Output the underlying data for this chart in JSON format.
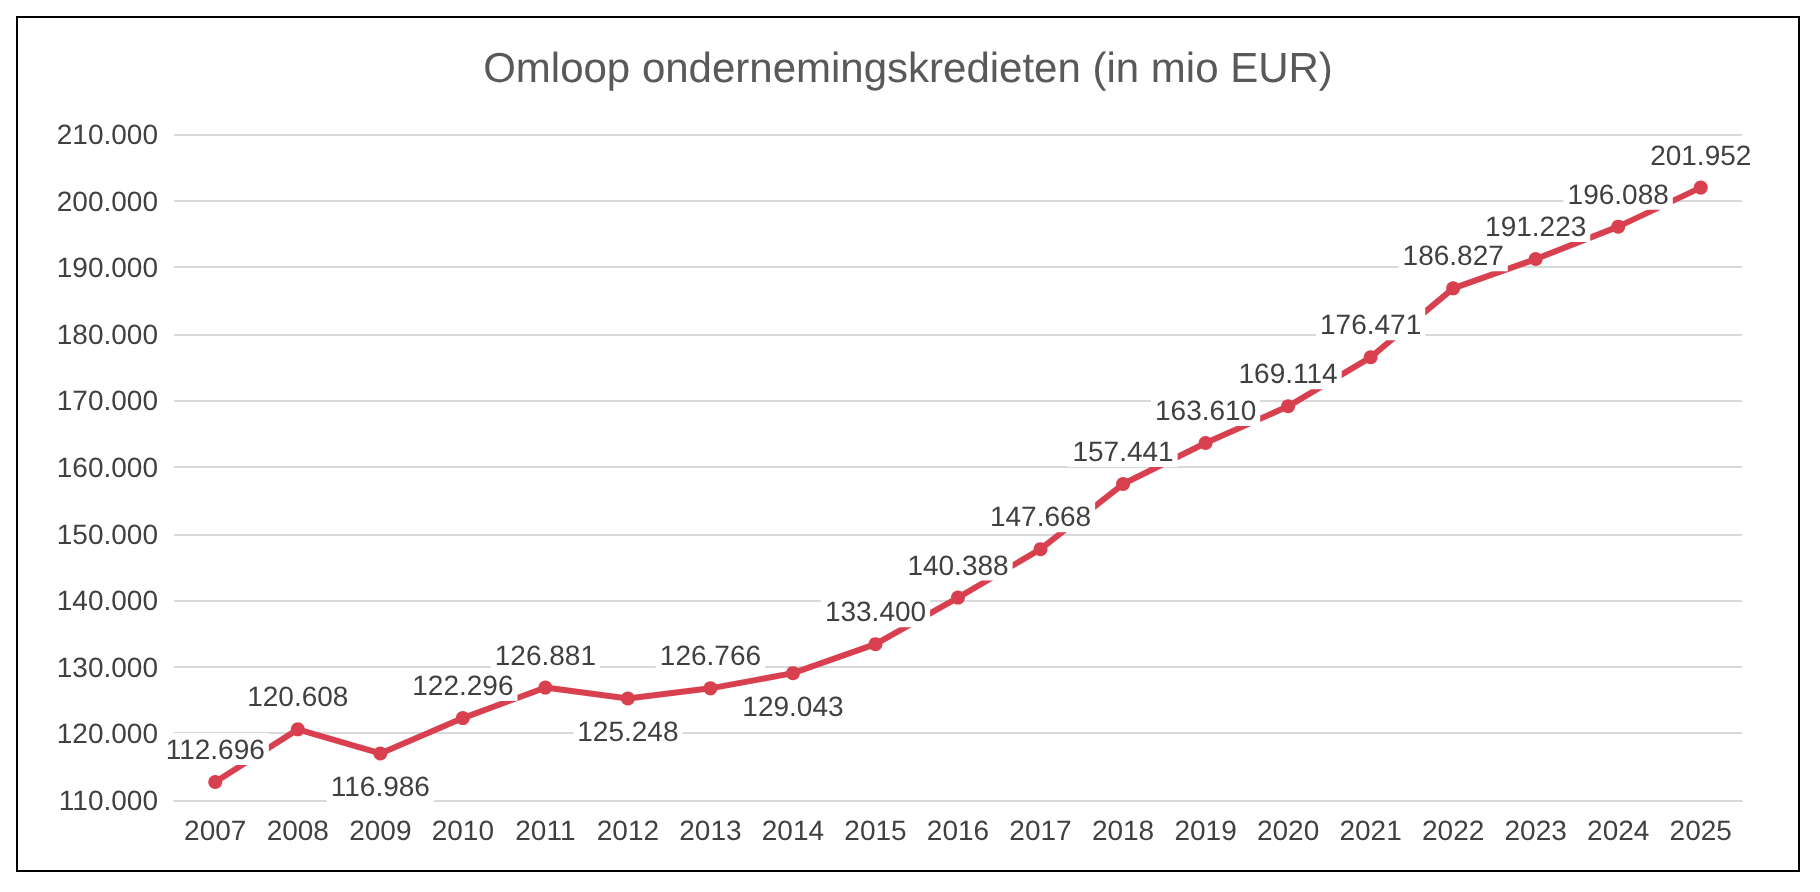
{
  "chart_data": {
    "type": "line",
    "title": "Omloop ondernemingskredieten (in mio EUR)",
    "categories": [
      "2007",
      "2008",
      "2009",
      "2010",
      "2011",
      "2012",
      "2013",
      "2014",
      "2015",
      "2016",
      "2017",
      "2018",
      "2019",
      "2020",
      "2021",
      "2022",
      "2023",
      "2024",
      "2025"
    ],
    "series": [
      {
        "color": "#d9404f",
        "values": [
          112696,
          120608,
          116986,
          122296,
          126881,
          125248,
          126766,
          129043,
          133400,
          140388,
          147668,
          157441,
          163610,
          169114,
          176471,
          186827,
          191223,
          196088,
          201952
        ],
        "value_labels": [
          "112.696",
          "120.608",
          "116.986",
          "122.296",
          "126.881",
          "125.248",
          "126.766",
          "129.043",
          "133.400",
          "140.388",
          "147.668",
          "157.441",
          "163.610",
          "169.114",
          "176.471",
          "186.827",
          "191.223",
          "196.088",
          "201.952"
        ]
      }
    ],
    "ylim": [
      110000,
      210000
    ],
    "yticks": [
      {
        "value": 110000,
        "label": "110.000"
      },
      {
        "value": 120000,
        "label": "120.000"
      },
      {
        "value": 130000,
        "label": "130.000"
      },
      {
        "value": 140000,
        "label": "140.000"
      },
      {
        "value": 150000,
        "label": "150.000"
      },
      {
        "value": 160000,
        "label": "160.000"
      },
      {
        "value": 170000,
        "label": "170.000"
      },
      {
        "value": 180000,
        "label": "180.000"
      },
      {
        "value": 190000,
        "label": "190.000"
      },
      {
        "value": 200000,
        "label": "200.000"
      },
      {
        "value": 210000,
        "label": "210.000"
      }
    ],
    "grid": "y",
    "marker": "circle",
    "line_style": "solid"
  }
}
